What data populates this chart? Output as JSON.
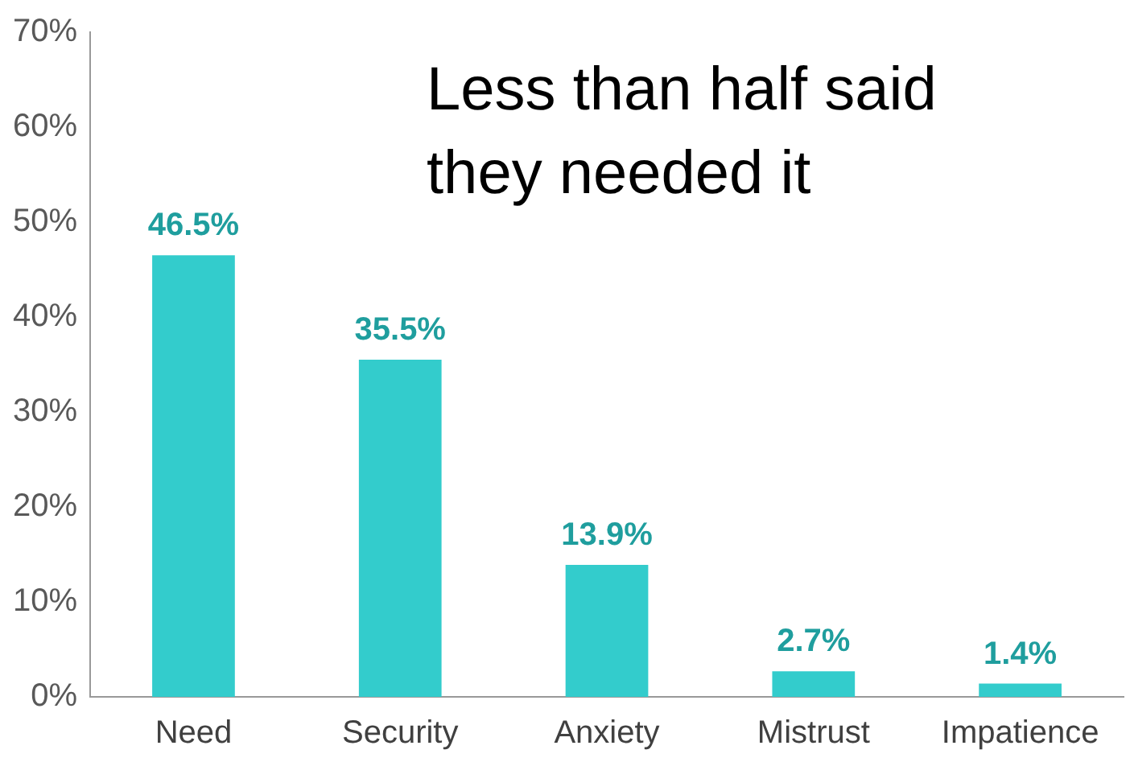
{
  "chart_data": {
    "type": "bar",
    "categories": [
      "Need",
      "Security",
      "Anxiety",
      "Mistrust",
      "Impatience"
    ],
    "values": [
      46.5,
      35.5,
      13.9,
      2.7,
      1.4
    ],
    "value_labels": [
      "46.5%",
      "35.5%",
      "13.9%",
      "2.7%",
      "1.4%"
    ],
    "color": "#33cccc",
    "ylim": [
      0,
      70
    ],
    "yticks": [
      {
        "value": 0,
        "label": "0%"
      },
      {
        "value": 10,
        "label": "10%"
      },
      {
        "value": 20,
        "label": "20%"
      },
      {
        "value": 30,
        "label": "30%"
      },
      {
        "value": 40,
        "label": "40%"
      },
      {
        "value": 50,
        "label": "50%"
      },
      {
        "value": 60,
        "label": "60%"
      },
      {
        "value": 70,
        "label": "70%"
      }
    ],
    "grid": false,
    "annotations": [
      "Less than half said they needed it"
    ]
  }
}
